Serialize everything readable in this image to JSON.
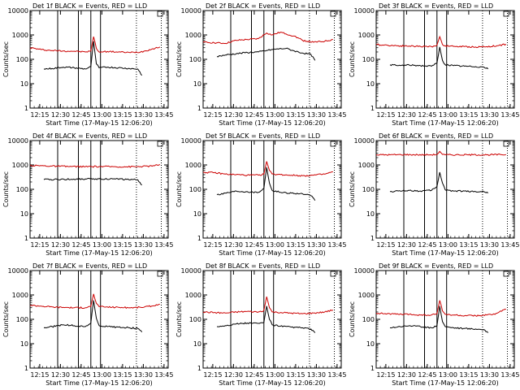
{
  "figure": {
    "time_axis": "linear-minutes-after-12:08",
    "y_scale": "log"
  },
  "chart_data": [
    {
      "type": "line",
      "title": "Det  1f  BLACK = Events, RED = LLD",
      "ylabel": "Counts/sec",
      "xlabel": "Start Time (17-May-15 12:06:20)",
      "xlim": [
        0,
        100
      ],
      "ylim": [
        1,
        10000
      ],
      "x_ticks": [
        7,
        22,
        37,
        52,
        67,
        82,
        97
      ],
      "x_tick_labels": [
        "12:15",
        "12:30",
        "12:45",
        "13:00",
        "13:15",
        "13:30",
        "13:45"
      ],
      "y_ticks": [
        1,
        10,
        100,
        1000,
        10000
      ],
      "y_tick_labels": [
        "1",
        "10",
        "100",
        "1000",
        "10000"
      ],
      "solid_vlines": [
        20,
        35,
        44,
        51
      ],
      "dotted_vlines": [
        77,
        95
      ],
      "series": [
        {
          "name": "LLD",
          "color": "#cc0000",
          "x": [
            0,
            8,
            16,
            24,
            32,
            40,
            44,
            46,
            48,
            50,
            56,
            64,
            72,
            80,
            88,
            94
          ],
          "y": [
            300,
            250,
            230,
            220,
            215,
            200,
            220,
            850,
            280,
            200,
            210,
            200,
            190,
            200,
            260,
            320
          ]
        },
        {
          "name": "Events",
          "color": "#000000",
          "x": [
            10,
            16,
            24,
            32,
            40,
            44,
            46,
            48,
            50,
            56,
            64,
            72,
            78,
            81
          ],
          "y": [
            40,
            42,
            48,
            45,
            40,
            50,
            550,
            65,
            45,
            48,
            45,
            42,
            40,
            22
          ]
        }
      ]
    },
    {
      "type": "line",
      "title": "Det  2f  BLACK = Events, RED = LLD",
      "ylabel": "Counts/sec",
      "xlabel": "Start Time (17-May-15 12:06:20)",
      "xlim": [
        0,
        100
      ],
      "ylim": [
        1,
        10000
      ],
      "x_ticks": [
        7,
        22,
        37,
        52,
        67,
        82,
        97
      ],
      "x_tick_labels": [
        "12:15",
        "12:30",
        "12:45",
        "13:00",
        "13:15",
        "13:30",
        "13:45"
      ],
      "y_ticks": [
        1,
        10,
        100,
        1000,
        10000
      ],
      "y_tick_labels": [
        "1",
        "10",
        "100",
        "1000",
        "10000"
      ],
      "solid_vlines": [
        20,
        35,
        44,
        51
      ],
      "dotted_vlines": [
        77,
        95
      ],
      "series": [
        {
          "name": "LLD",
          "color": "#cc0000",
          "x": [
            0,
            8,
            16,
            24,
            32,
            40,
            46,
            50,
            56,
            60,
            66,
            72,
            80,
            88,
            94
          ],
          "y": [
            500,
            480,
            450,
            600,
            650,
            700,
            1200,
            1000,
            1300,
            1100,
            900,
            600,
            500,
            550,
            650
          ]
        },
        {
          "name": "Events",
          "color": "#000000",
          "x": [
            10,
            16,
            24,
            32,
            40,
            46,
            52,
            60,
            66,
            72,
            78,
            81
          ],
          "y": [
            130,
            150,
            170,
            190,
            200,
            230,
            260,
            280,
            220,
            180,
            160,
            90
          ]
        }
      ]
    },
    {
      "type": "line",
      "title": "Det  3f  BLACK = Events, RED = LLD",
      "ylabel": "Counts/sec",
      "xlabel": "Start Time (17-May-15 12:06:20)",
      "xlim": [
        0,
        100
      ],
      "ylim": [
        1,
        10000
      ],
      "x_ticks": [
        7,
        22,
        37,
        52,
        67,
        82,
        97
      ],
      "x_tick_labels": [
        "12:15",
        "12:30",
        "12:45",
        "13:00",
        "13:15",
        "13:30",
        "13:45"
      ],
      "y_ticks": [
        1,
        10,
        100,
        1000,
        10000
      ],
      "y_tick_labels": [
        "1",
        "10",
        "100",
        "1000",
        "10000"
      ],
      "solid_vlines": [
        20,
        35,
        44,
        51
      ],
      "dotted_vlines": [
        77,
        95
      ],
      "series": [
        {
          "name": "LLD",
          "color": "#cc0000",
          "x": [
            0,
            8,
            16,
            24,
            32,
            40,
            44,
            46,
            48,
            50,
            56,
            64,
            72,
            80,
            88,
            94
          ],
          "y": [
            400,
            380,
            360,
            350,
            340,
            330,
            380,
            850,
            400,
            360,
            340,
            330,
            320,
            330,
            360,
            420
          ]
        },
        {
          "name": "Events",
          "color": "#000000",
          "x": [
            10,
            16,
            24,
            32,
            40,
            44,
            46,
            48,
            50,
            56,
            64,
            72,
            78,
            81
          ],
          "y": [
            60,
            55,
            58,
            55,
            52,
            70,
            320,
            90,
            60,
            55,
            52,
            50,
            48,
            40
          ]
        }
      ]
    },
    {
      "type": "line",
      "title": "Det  4f  BLACK = Events, RED = LLD",
      "ylabel": "Counts/sec",
      "xlabel": "Start Time (17-May-15 12:06:20)",
      "xlim": [
        0,
        100
      ],
      "ylim": [
        1,
        10000
      ],
      "x_ticks": [
        7,
        22,
        37,
        52,
        67,
        82,
        97
      ],
      "x_tick_labels": [
        "12:15",
        "12:30",
        "12:45",
        "13:00",
        "13:15",
        "13:30",
        "13:45"
      ],
      "y_ticks": [
        1,
        10,
        100,
        1000,
        10000
      ],
      "y_tick_labels": [
        "1",
        "10",
        "100",
        "1000",
        "10000"
      ],
      "solid_vlines": [
        20,
        35,
        44,
        51
      ],
      "dotted_vlines": [
        77,
        95
      ],
      "series": [
        {
          "name": "LLD",
          "color": "#cc0000",
          "x": [
            0,
            10,
            20,
            30,
            40,
            50,
            60,
            70,
            80,
            90,
            94
          ],
          "y": [
            950,
            920,
            880,
            860,
            850,
            860,
            850,
            840,
            860,
            920,
            1050
          ]
        },
        {
          "name": "Events",
          "color": "#000000",
          "x": [
            10,
            20,
            30,
            40,
            50,
            60,
            70,
            78,
            81
          ],
          "y": [
            250,
            255,
            260,
            265,
            270,
            265,
            255,
            245,
            150
          ]
        }
      ]
    },
    {
      "type": "line",
      "title": "Det  5f  BLACK = Events, RED = LLD",
      "ylabel": "Counts/sec",
      "xlabel": "Start Time (17-May-15 12:06:20)",
      "xlim": [
        0,
        100
      ],
      "ylim": [
        1,
        10000
      ],
      "x_ticks": [
        7,
        22,
        37,
        52,
        67,
        82,
        97
      ],
      "x_tick_labels": [
        "12:15",
        "12:30",
        "12:45",
        "13:00",
        "13:15",
        "13:30",
        "13:45"
      ],
      "y_ticks": [
        1,
        10,
        100,
        1000,
        10000
      ],
      "y_tick_labels": [
        "1",
        "10",
        "100",
        "1000",
        "10000"
      ],
      "solid_vlines": [
        20,
        35,
        44,
        51
      ],
      "dotted_vlines": [
        77,
        95
      ],
      "series": [
        {
          "name": "LLD",
          "color": "#cc0000",
          "x": [
            0,
            8,
            16,
            24,
            32,
            40,
            44,
            46,
            48,
            50,
            56,
            64,
            72,
            80,
            88,
            94
          ],
          "y": [
            500,
            480,
            420,
            400,
            380,
            380,
            420,
            1400,
            600,
            420,
            400,
            380,
            360,
            380,
            420,
            520
          ]
        },
        {
          "name": "Events",
          "color": "#000000",
          "x": [
            10,
            16,
            24,
            32,
            40,
            44,
            46,
            48,
            50,
            56,
            64,
            72,
            78,
            81
          ],
          "y": [
            60,
            70,
            85,
            80,
            75,
            110,
            800,
            180,
            90,
            75,
            70,
            65,
            55,
            35
          ]
        }
      ]
    },
    {
      "type": "line",
      "title": "Det  6f  BLACK = Events, RED = LLD",
      "ylabel": "Counts/sec",
      "xlabel": "Start Time (17-May-15 12:06:20)",
      "xlim": [
        0,
        100
      ],
      "ylim": [
        1,
        10000
      ],
      "x_ticks": [
        7,
        22,
        37,
        52,
        67,
        82,
        97
      ],
      "x_tick_labels": [
        "12:15",
        "12:30",
        "12:45",
        "13:00",
        "13:15",
        "13:30",
        "13:45"
      ],
      "y_ticks": [
        1,
        10,
        100,
        1000,
        10000
      ],
      "y_tick_labels": [
        "1",
        "10",
        "100",
        "1000",
        "10000"
      ],
      "solid_vlines": [
        20,
        35,
        44,
        51
      ],
      "dotted_vlines": [
        77,
        95
      ],
      "series": [
        {
          "name": "LLD",
          "color": "#cc0000",
          "x": [
            0,
            10,
            20,
            30,
            40,
            44,
            46,
            48,
            50,
            60,
            70,
            80,
            90,
            94
          ],
          "y": [
            2600,
            2600,
            2650,
            2600,
            2600,
            2700,
            3600,
            2700,
            2600,
            2600,
            2600,
            2600,
            2650,
            2650
          ]
        },
        {
          "name": "Events",
          "color": "#000000",
          "x": [
            10,
            16,
            24,
            32,
            40,
            44,
            46,
            48,
            50,
            56,
            64,
            72,
            78,
            81
          ],
          "y": [
            80,
            85,
            90,
            85,
            90,
            130,
            500,
            180,
            95,
            85,
            85,
            80,
            80,
            70
          ]
        }
      ]
    },
    {
      "type": "line",
      "title": "Det  7f  BLACK = Events, RED = LLD",
      "ylabel": "Counts/sec",
      "xlabel": "Start Time (17-May-15 12:06:20)",
      "xlim": [
        0,
        100
      ],
      "ylim": [
        1,
        10000
      ],
      "x_ticks": [
        7,
        22,
        37,
        52,
        67,
        82,
        97
      ],
      "x_tick_labels": [
        "12:15",
        "12:30",
        "12:45",
        "13:00",
        "13:15",
        "13:30",
        "13:45"
      ],
      "y_ticks": [
        1,
        10,
        100,
        1000,
        10000
      ],
      "y_tick_labels": [
        "1",
        "10",
        "100",
        "1000",
        "10000"
      ],
      "solid_vlines": [
        20,
        35,
        44,
        51
      ],
      "dotted_vlines": [
        77,
        95
      ],
      "series": [
        {
          "name": "LLD",
          "color": "#cc0000",
          "x": [
            0,
            8,
            16,
            24,
            32,
            40,
            44,
            46,
            48,
            50,
            56,
            64,
            72,
            80,
            88,
            94
          ],
          "y": [
            380,
            350,
            320,
            310,
            300,
            300,
            340,
            1100,
            450,
            330,
            320,
            310,
            300,
            310,
            350,
            420
          ]
        },
        {
          "name": "Events",
          "color": "#000000",
          "x": [
            10,
            16,
            24,
            32,
            40,
            44,
            46,
            48,
            50,
            56,
            64,
            72,
            78,
            81
          ],
          "y": [
            45,
            50,
            60,
            55,
            50,
            70,
            600,
            110,
            55,
            50,
            48,
            45,
            42,
            30
          ]
        }
      ]
    },
    {
      "type": "line",
      "title": "Det  8f  BLACK = Events, RED = LLD",
      "ylabel": "Counts/sec",
      "xlabel": "Start Time (17-May-15 12:06:20)",
      "xlim": [
        0,
        100
      ],
      "ylim": [
        1,
        10000
      ],
      "x_ticks": [
        7,
        22,
        37,
        52,
        67,
        82,
        97
      ],
      "x_tick_labels": [
        "12:15",
        "12:30",
        "12:45",
        "13:00",
        "13:15",
        "13:30",
        "13:45"
      ],
      "y_ticks": [
        1,
        10,
        100,
        1000,
        10000
      ],
      "y_tick_labels": [
        "1",
        "10",
        "100",
        "1000",
        "10000"
      ],
      "solid_vlines": [
        20,
        35,
        44,
        51
      ],
      "dotted_vlines": [
        77,
        95
      ],
      "series": [
        {
          "name": "LLD",
          "color": "#cc0000",
          "x": [
            0,
            8,
            16,
            24,
            32,
            40,
            44,
            46,
            48,
            50,
            56,
            64,
            72,
            80,
            88,
            94
          ],
          "y": [
            200,
            190,
            180,
            200,
            210,
            200,
            230,
            850,
            300,
            200,
            190,
            180,
            170,
            180,
            200,
            240
          ]
        },
        {
          "name": "Events",
          "color": "#000000",
          "x": [
            10,
            16,
            24,
            32,
            40,
            44,
            46,
            48,
            50,
            56,
            64,
            72,
            78,
            81
          ],
          "y": [
            50,
            55,
            65,
            70,
            68,
            75,
            350,
            100,
            60,
            52,
            48,
            45,
            40,
            28
          ]
        }
      ]
    },
    {
      "type": "line",
      "title": "Det  9f  BLACK = Events, RED = LLD",
      "ylabel": "Counts/sec",
      "xlabel": "Start Time (17-May-15 12:06:20)",
      "xlim": [
        0,
        100
      ],
      "ylim": [
        1,
        10000
      ],
      "x_ticks": [
        7,
        22,
        37,
        52,
        67,
        82,
        97
      ],
      "x_tick_labels": [
        "12:15",
        "12:30",
        "12:45",
        "13:00",
        "13:15",
        "13:30",
        "13:45"
      ],
      "y_ticks": [
        1,
        10,
        100,
        1000,
        10000
      ],
      "y_tick_labels": [
        "1",
        "10",
        "100",
        "1000",
        "10000"
      ],
      "solid_vlines": [
        20,
        35,
        44,
        51
      ],
      "dotted_vlines": [
        77,
        95
      ],
      "series": [
        {
          "name": "LLD",
          "color": "#cc0000",
          "x": [
            0,
            8,
            16,
            24,
            32,
            40,
            44,
            46,
            48,
            50,
            56,
            64,
            72,
            80,
            86,
            90,
            94
          ],
          "y": [
            180,
            170,
            160,
            160,
            150,
            150,
            170,
            600,
            220,
            160,
            150,
            140,
            140,
            150,
            160,
            220,
            260
          ]
        },
        {
          "name": "Events",
          "color": "#000000",
          "x": [
            10,
            16,
            24,
            32,
            40,
            44,
            46,
            48,
            50,
            56,
            64,
            72,
            78,
            81
          ],
          "y": [
            45,
            50,
            55,
            50,
            45,
            55,
            350,
            80,
            50,
            45,
            42,
            40,
            38,
            28
          ]
        }
      ]
    }
  ]
}
